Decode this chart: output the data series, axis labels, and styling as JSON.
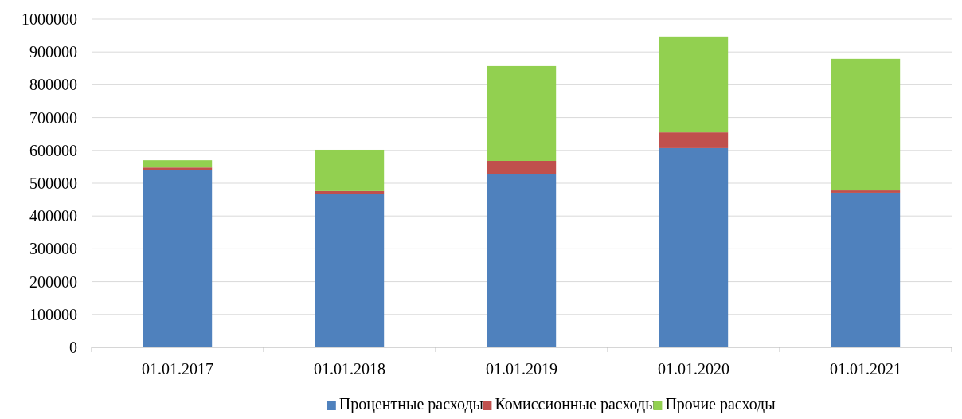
{
  "chart_data": {
    "type": "bar",
    "stacked": true,
    "categories": [
      "01.01.2017",
      "01.01.2018",
      "01.01.2019",
      "01.01.2020",
      "01.01.2021"
    ],
    "series": [
      {
        "name": "Процентные расходы",
        "color": "#4f81bd",
        "values": [
          541000,
          468000,
          527000,
          607000,
          471000
        ]
      },
      {
        "name": "Комиссионные расходы",
        "color": "#c0504d",
        "values": [
          7000,
          8000,
          41000,
          48000,
          7000
        ]
      },
      {
        "name": "Прочие расходы",
        "color": "#92d050",
        "values": [
          22000,
          126000,
          289000,
          292000,
          401000
        ]
      }
    ],
    "ylim": [
      0,
      1000000
    ],
    "yticks": [
      0,
      100000,
      200000,
      300000,
      400000,
      500000,
      600000,
      700000,
      800000,
      900000,
      1000000
    ],
    "grid": "y",
    "legend": "bottom"
  }
}
